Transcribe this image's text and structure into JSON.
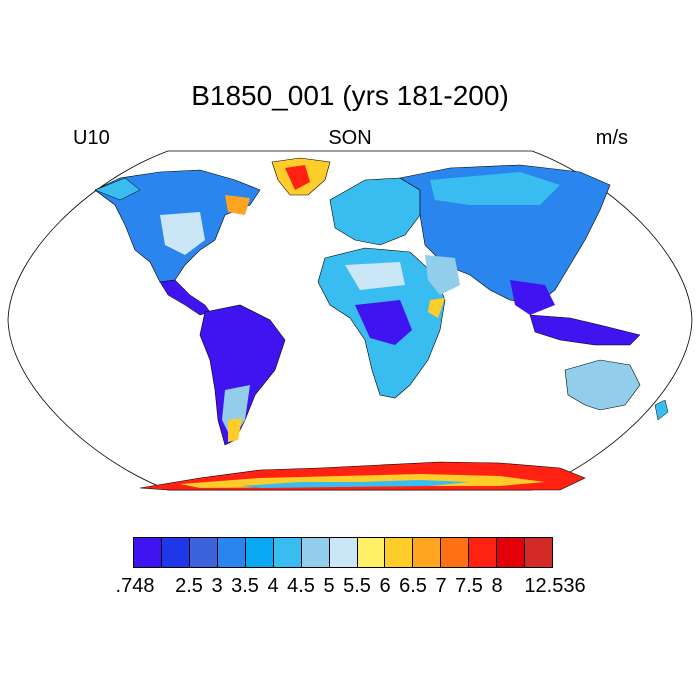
{
  "title": "B1850_001 (yrs 181-200)",
  "left_label": "U10",
  "center_label": "SON",
  "right_label": "m/s",
  "colorbar": {
    "colors": [
      "#3f14f0",
      "#1d37e9",
      "#3c63dc",
      "#2a86ee",
      "#0aa8f2",
      "#39bdf1",
      "#93cdec",
      "#cbe7f7",
      "#fff065",
      "#ffcd2a",
      "#ffa41e",
      "#ff7115",
      "#ff2111",
      "#e20009",
      "#d32a27"
    ],
    "labels": [
      ".748",
      "2.5",
      "3",
      "3.5",
      "4",
      "4.5",
      "5",
      "5.5",
      "6",
      "6.5",
      "7",
      "7.5",
      "8",
      "12.536"
    ]
  },
  "colors": {
    "ocean": "#ffffff",
    "land_default": "#39bdf1",
    "calm": "#3f14f0",
    "windy": "#ff2111"
  }
}
